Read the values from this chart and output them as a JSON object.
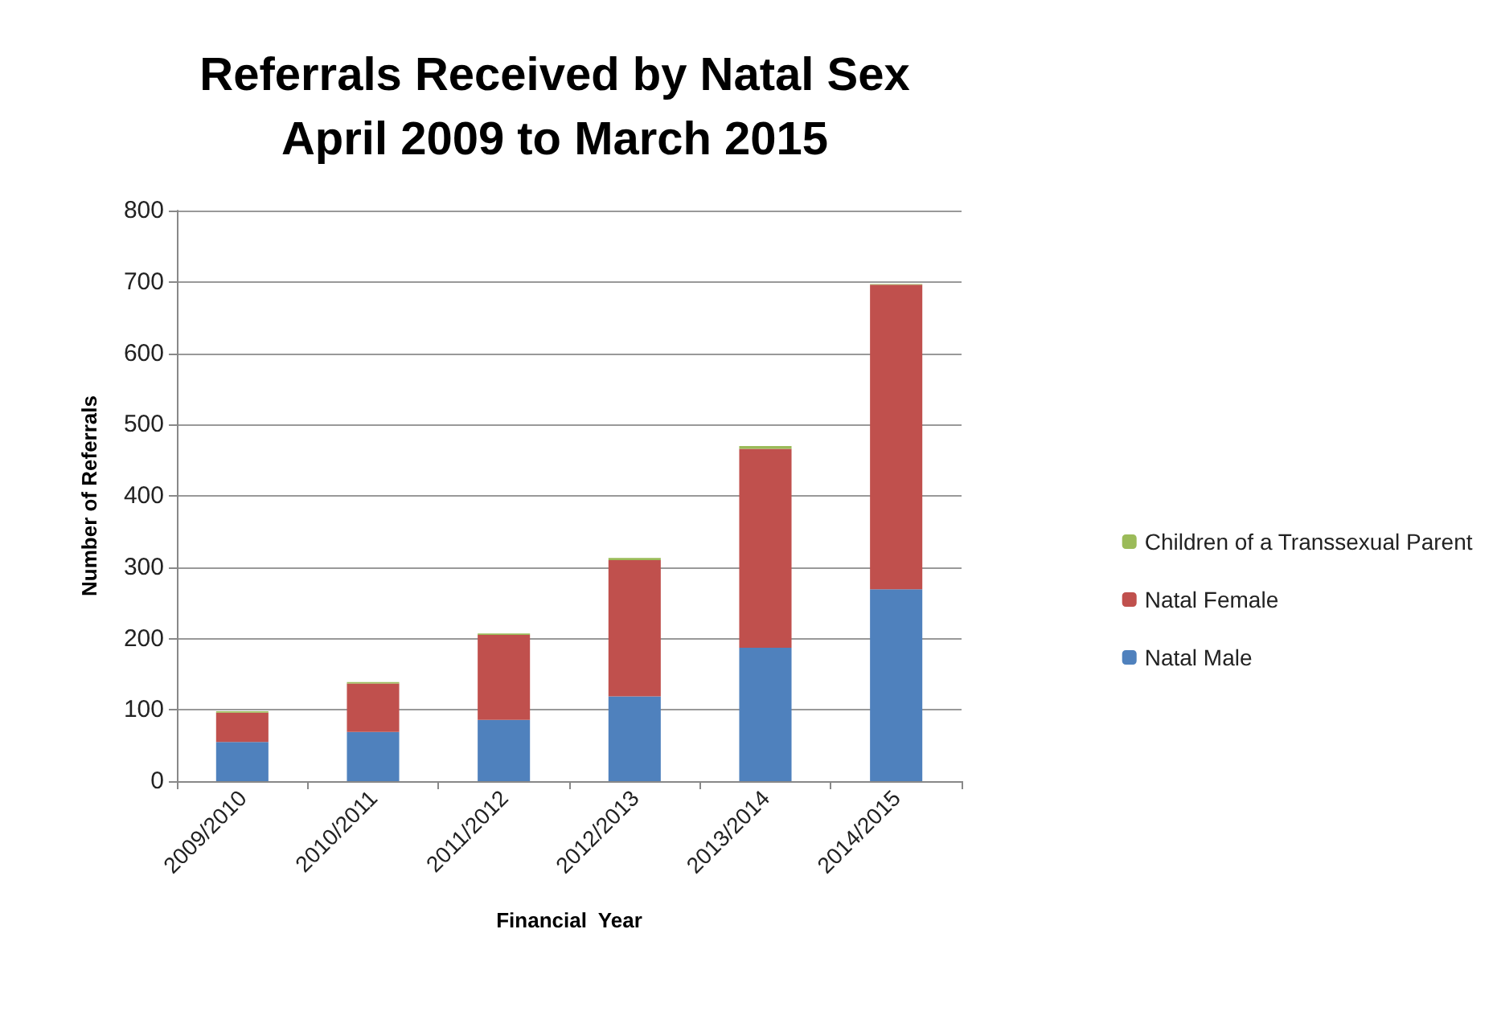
{
  "chart_data": {
    "type": "bar",
    "title": "Referrals Received by Natal Sex\nApril 2009 to March 2015",
    "xlabel": "Financial  Year",
    "ylabel": "Number of Referrals",
    "categories": [
      "2009/2010",
      "2010/2011",
      "2011/2012",
      "2012/2013",
      "2013/2014",
      "2014/2015"
    ],
    "series": [
      {
        "name": "Natal Male",
        "color": "#4f81bd",
        "values": [
          55,
          69,
          86,
          119,
          187,
          269
        ]
      },
      {
        "name": "Natal Female",
        "color": "#c0504d",
        "values": [
          41,
          68,
          119,
          191,
          279,
          427
        ]
      },
      {
        "name": "Children of a Transsexual Parent",
        "color": "#9bbb59",
        "values": [
          2,
          2,
          2,
          3,
          4,
          1
        ]
      }
    ],
    "stacked": true,
    "ylim": [
      0,
      800
    ],
    "yticks": [
      0,
      100,
      200,
      300,
      400,
      500,
      600,
      700,
      800
    ],
    "grid": "y",
    "legend": "right"
  }
}
